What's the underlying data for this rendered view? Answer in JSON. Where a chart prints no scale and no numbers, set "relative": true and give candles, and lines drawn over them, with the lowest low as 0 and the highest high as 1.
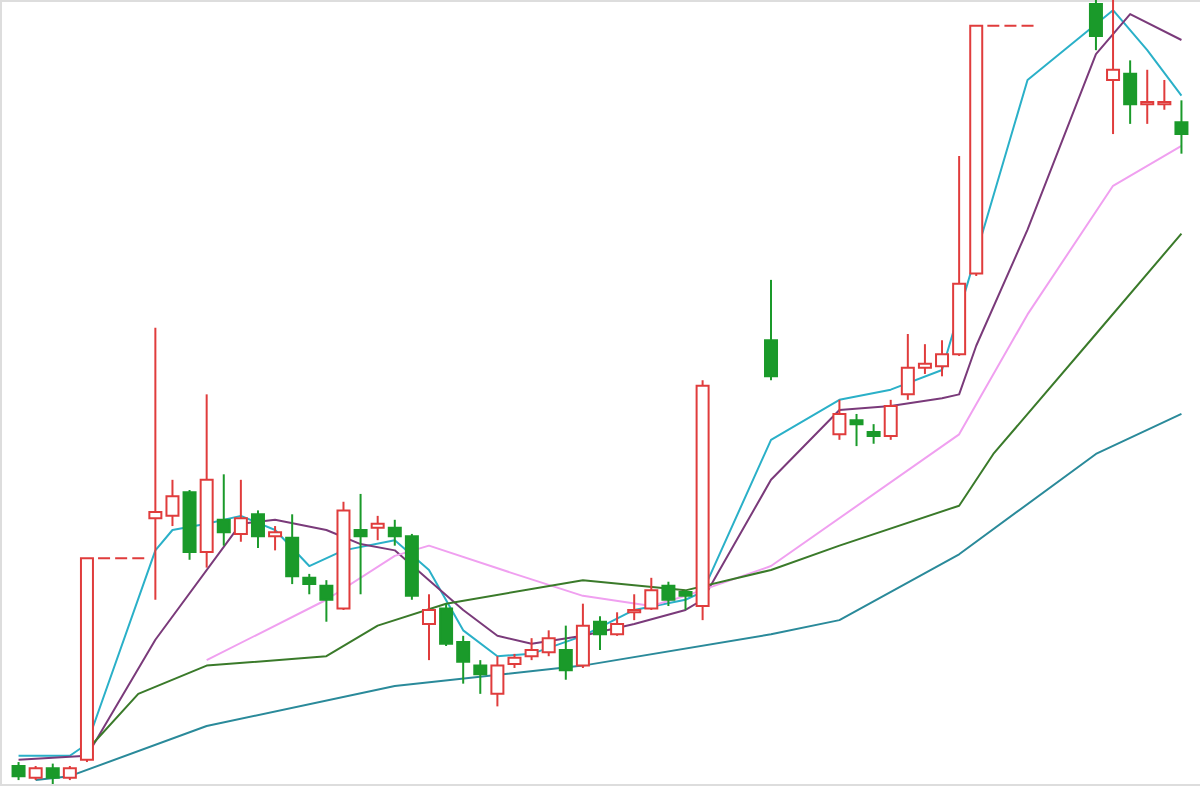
{
  "chart_data": {
    "type": "candlestick",
    "relative": true,
    "categories": [
      null,
      null,
      null,
      null,
      null,
      null,
      null,
      null,
      null,
      null,
      null,
      null,
      null,
      null,
      null,
      null,
      null,
      null,
      null,
      null,
      null,
      null,
      null,
      null,
      null,
      null,
      null,
      null,
      null,
      null,
      null,
      null,
      null,
      null,
      null,
      null,
      null,
      null,
      null,
      null,
      null,
      null,
      null,
      null,
      null,
      null,
      null,
      null,
      null,
      null,
      null,
      null,
      null,
      null,
      null,
      null,
      null,
      null,
      null,
      null,
      null,
      null,
      null,
      null,
      null,
      null,
      null,
      null,
      null
    ],
    "ohlc": [
      [
        0.023,
        0.028,
        0.005,
        0.01
      ],
      [
        0.008,
        0.023,
        0.005,
        0.02
      ],
      [
        0.02,
        0.026,
        0,
        0.008
      ],
      [
        0.008,
        0.023,
        0.005,
        0.02
      ],
      [
        0.031,
        0.288,
        0.028,
        0.288
      ],
      [
        0.288,
        0.288,
        0.288,
        0.288
      ],
      [
        0.288,
        0.288,
        0.288,
        0.288
      ],
      [
        0.288,
        0.288,
        0.288,
        0.288
      ],
      [
        0.339,
        0.582,
        0.235,
        0.347
      ],
      [
        0.342,
        0.388,
        0.329,
        0.367
      ],
      [
        0.372,
        0.375,
        0.286,
        0.296
      ],
      [
        0.296,
        0.497,
        0.276,
        0.388
      ],
      [
        0.337,
        0.395,
        0.304,
        0.321
      ],
      [
        0.319,
        0.388,
        0.309,
        0.339
      ],
      [
        0.344,
        0.349,
        0.301,
        0.316
      ],
      [
        0.316,
        0.329,
        0.298,
        0.321
      ],
      [
        0.314,
        0.344,
        0.255,
        0.265
      ],
      [
        0.263,
        0.268,
        0.242,
        0.255
      ],
      [
        0.253,
        0.26,
        0.207,
        0.235
      ],
      [
        0.224,
        0.36,
        0.222,
        0.349
      ],
      [
        0.324,
        0.37,
        0.242,
        0.316
      ],
      [
        0.327,
        0.342,
        0.311,
        0.332
      ],
      [
        0.327,
        0.337,
        0.304,
        0.316
      ],
      [
        0.316,
        0.319,
        0.235,
        0.24
      ],
      [
        0.204,
        0.242,
        0.158,
        0.222
      ],
      [
        0.224,
        0.23,
        0.176,
        0.179
      ],
      [
        0.181,
        0.189,
        0.128,
        0.156
      ],
      [
        0.151,
        0.158,
        0.115,
        0.14
      ],
      [
        0.115,
        0.163,
        0.099,
        0.151
      ],
      [
        0.153,
        0.166,
        0.148,
        0.161
      ],
      [
        0.163,
        0.186,
        0.158,
        0.171
      ],
      [
        0.168,
        0.196,
        0.163,
        0.186
      ],
      [
        0.171,
        0.202,
        0.133,
        0.145
      ],
      [
        0.151,
        0.23,
        0.148,
        0.202
      ],
      [
        0.207,
        0.214,
        0.171,
        0.191
      ],
      [
        0.191,
        0.219,
        0.189,
        0.204
      ],
      [
        0.219,
        0.242,
        0.209,
        0.222
      ],
      [
        0.224,
        0.263,
        0.222,
        0.247
      ],
      [
        0.253,
        0.258,
        0.227,
        0.235
      ],
      [
        0.245,
        0.247,
        0.222,
        0.24
      ],
      [
        0.227,
        0.515,
        0.209,
        0.508
      ],
      null,
      null,
      null,
      [
        0.566,
        0.643,
        0.515,
        0.52
      ],
      null,
      null,
      null,
      [
        0.446,
        0.49,
        0.439,
        0.472
      ],
      [
        0.464,
        0.472,
        0.431,
        0.459
      ],
      [
        0.449,
        0.459,
        0.434,
        0.444
      ],
      [
        0.444,
        0.49,
        0.439,
        0.482
      ],
      [
        0.497,
        0.574,
        0.49,
        0.531
      ],
      [
        0.531,
        0.561,
        0.523,
        0.536
      ],
      [
        0.533,
        0.566,
        0.52,
        0.548
      ],
      [
        0.548,
        0.801,
        0.546,
        0.638
      ],
      [
        0.651,
        0.967,
        0.648,
        0.967
      ],
      [
        0.967,
        0.967,
        0.967,
        0.967
      ],
      [
        0.967,
        0.967,
        0.967,
        0.967
      ],
      [
        0.967,
        0.967,
        0.967,
        0.967
      ],
      null,
      null,
      null,
      [
        0.995,
        1,
        0.936,
        0.954
      ],
      [
        0.898,
        1,
        0.829,
        0.911
      ],
      [
        0.906,
        0.923,
        0.842,
        0.867
      ],
      [
        0.867,
        0.911,
        0.842,
        0.87
      ],
      [
        0.867,
        0.898,
        0.86,
        0.87
      ],
      [
        0.844,
        0.872,
        0.804,
        0.829
      ]
    ],
    "colors": [
      "#1a9a2a",
      "#e03c3c",
      "#1a9a2a",
      "#e03c3c",
      "#e03c3c",
      "#e03c3c",
      "#e03c3c",
      "#e03c3c",
      "#e03c3c",
      "#e03c3c",
      "#1a9a2a",
      "#e03c3c",
      "#1a9a2a",
      "#e03c3c",
      "#1a9a2a",
      "#e03c3c",
      "#1a9a2a",
      "#1a9a2a",
      "#1a9a2a",
      "#e03c3c",
      "#1a9a2a",
      "#e03c3c",
      "#1a9a2a",
      "#1a9a2a",
      "#e03c3c",
      "#1a9a2a",
      "#1a9a2a",
      "#1a9a2a",
      "#e03c3c",
      "#e03c3c",
      "#e03c3c",
      "#e03c3c",
      "#1a9a2a",
      "#e03c3c",
      "#1a9a2a",
      "#e03c3c",
      "#e03c3c",
      "#e03c3c",
      "#1a9a2a",
      "#1a9a2a",
      "#e03c3c",
      null,
      null,
      null,
      "#1a9a2a",
      null,
      null,
      null,
      "#e03c3c",
      "#1a9a2a",
      "#1a9a2a",
      "#e03c3c",
      "#e03c3c",
      "#e03c3c",
      "#e03c3c",
      "#e03c3c",
      "#e03c3c",
      "#e03c3c",
      "#e03c3c",
      "#e03c3c",
      null,
      null,
      null,
      "#1a9a2a",
      "#e03c3c",
      "#1a9a2a",
      "#e03c3c",
      "#e03c3c",
      "#1a9a2a"
    ],
    "series": [
      {
        "type": "line",
        "color": "#2ab0c8",
        "values": [
          0.036,
          null,
          null,
          0.036,
          0.051,
          null,
          null,
          null,
          0.298,
          0.324,
          null,
          0.332,
          null,
          0.342,
          null,
          0.324,
          null,
          0.278,
          null,
          0.298,
          null,
          null,
          0.311,
          null,
          0.273,
          null,
          0.196,
          null,
          0.163,
          null,
          0.166,
          null,
          null,
          0.189,
          null,
          null,
          0.222,
          null,
          null,
          0.235,
          0.245,
          null,
          null,
          null,
          0.439,
          null,
          null,
          null,
          0.49,
          null,
          null,
          0.503,
          null,
          null,
          0.528,
          null,
          null,
          null,
          null,
          0.898,
          null,
          null,
          null,
          null,
          0.987,
          null,
          0.936,
          null,
          0.878
        ]
      },
      {
        "type": "line",
        "color": "#7a3a7a",
        "values": [
          0.031,
          null,
          null,
          null,
          0.036,
          null,
          null,
          null,
          0.184,
          null,
          null,
          null,
          null,
          0.332,
          null,
          0.337,
          null,
          null,
          0.324,
          null,
          0.306,
          null,
          0.298,
          null,
          0.26,
          null,
          0.222,
          null,
          0.189,
          null,
          0.179,
          null,
          null,
          0.189,
          null,
          null,
          0.204,
          null,
          null,
          0.222,
          0.235,
          null,
          null,
          null,
          0.388,
          null,
          null,
          null,
          0.477,
          null,
          null,
          0.482,
          null,
          null,
          0.492,
          0.497,
          0.559,
          null,
          null,
          0.707,
          null,
          null,
          null,
          0.931,
          null,
          0.982,
          null,
          null,
          0.949
        ]
      },
      {
        "type": "line",
        "color": "#f0a0f0",
        "values": [
          null,
          null,
          null,
          null,
          null,
          null,
          null,
          null,
          null,
          null,
          null,
          0.158,
          null,
          null,
          null,
          null,
          null,
          null,
          0.235,
          null,
          null,
          null,
          0.291,
          null,
          0.304,
          null,
          null,
          null,
          null,
          0.268,
          null,
          null,
          null,
          0.24,
          null,
          null,
          null,
          0.227,
          null,
          0.24,
          null,
          null,
          null,
          null,
          0.278,
          null,
          null,
          null,
          null,
          null,
          null,
          null,
          null,
          null,
          null,
          0.446,
          null,
          null,
          null,
          0.599,
          null,
          null,
          null,
          null,
          0.763,
          null,
          null,
          null,
          0.814
        ]
      },
      {
        "type": "line",
        "color": "#3a7a2a",
        "values": [
          null,
          null,
          null,
          null,
          0.043,
          null,
          null,
          0.115,
          null,
          null,
          null,
          0.151,
          null,
          null,
          null,
          null,
          null,
          null,
          0.163,
          null,
          null,
          0.202,
          null,
          null,
          null,
          0.23,
          null,
          null,
          null,
          null,
          null,
          null,
          null,
          0.26,
          null,
          null,
          null,
          null,
          null,
          0.247,
          null,
          null,
          null,
          null,
          0.273,
          null,
          null,
          null,
          0.304,
          null,
          null,
          null,
          null,
          null,
          null,
          0.355,
          null,
          0.421,
          null,
          null,
          null,
          null,
          null,
          0.574,
          null,
          null,
          null,
          null,
          0.702
        ]
      },
      {
        "type": "line",
        "color": "#2a8a9a",
        "values": [
          null,
          0.005,
          null,
          0.01,
          null,
          null,
          null,
          null,
          null,
          null,
          null,
          0.074,
          null,
          null,
          null,
          null,
          null,
          null,
          null,
          null,
          null,
          null,
          0.125,
          null,
          null,
          null,
          null,
          null,
          null,
          null,
          null,
          null,
          null,
          0.151,
          null,
          null,
          null,
          null,
          null,
          null,
          null,
          null,
          null,
          null,
          0.191,
          null,
          null,
          null,
          0.209,
          null,
          null,
          null,
          null,
          null,
          null,
          0.293,
          null,
          null,
          null,
          null,
          null,
          null,
          null,
          0.421,
          null,
          null,
          null,
          null,
          0.472
        ]
      }
    ]
  }
}
